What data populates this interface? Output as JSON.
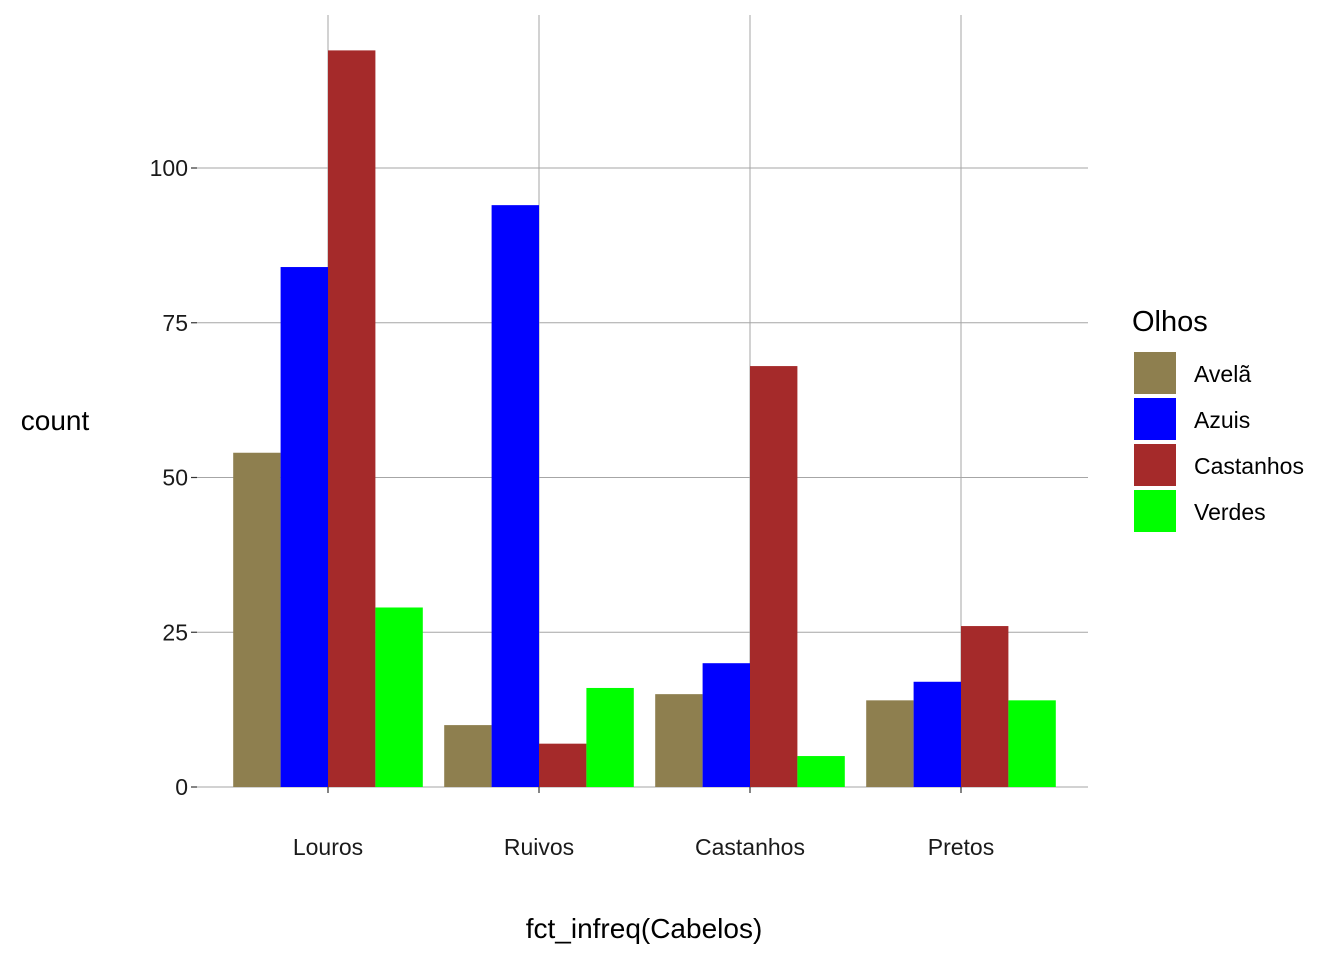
{
  "chart_data": {
    "type": "bar",
    "xlabel": "fct_infreq(Cabelos)",
    "ylabel": "count",
    "categories": [
      "Louros",
      "Ruivos",
      "Castanhos",
      "Pretos"
    ],
    "ylim": [
      0,
      125
    ],
    "yticks": [
      0,
      25,
      50,
      75,
      100
    ],
    "grid": true,
    "legend": {
      "title": "Olhos",
      "position": "right"
    },
    "series": [
      {
        "name": "Avelã",
        "color": "#8e7f4f",
        "values": [
          54,
          10,
          15,
          14
        ]
      },
      {
        "name": "Azuis",
        "color": "#0000ff",
        "values": [
          84,
          94,
          20,
          17
        ]
      },
      {
        "name": "Castanhos",
        "color": "#a52a2a",
        "values": [
          119,
          7,
          68,
          26
        ]
      },
      {
        "name": "Verdes",
        "color": "#00ff00",
        "values": [
          29,
          16,
          5,
          14
        ]
      }
    ],
    "grid_color": "#a6a6a6",
    "text_color": "#1a1a1a"
  }
}
